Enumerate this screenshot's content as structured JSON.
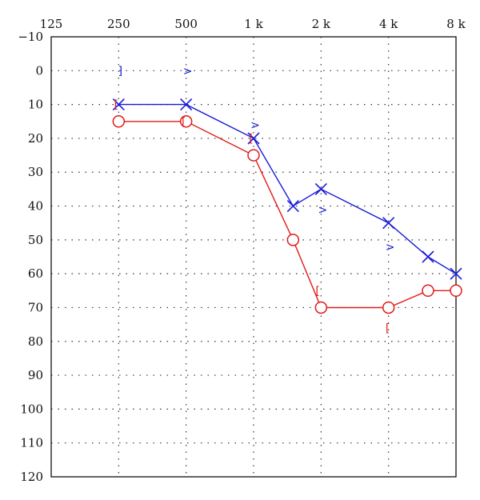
{
  "chart_data": {
    "type": "line",
    "x_scale": "log2",
    "x_ticks": [
      {
        "value": 125,
        "label": "125"
      },
      {
        "value": 250,
        "label": "250"
      },
      {
        "value": 500,
        "label": "500"
      },
      {
        "value": 1000,
        "label": "1 k"
      },
      {
        "value": 2000,
        "label": "2 k"
      },
      {
        "value": 4000,
        "label": "4 k"
      },
      {
        "value": 8000,
        "label": "8 k"
      }
    ],
    "x_range": [
      125,
      8000
    ],
    "ylim": [
      -10,
      120
    ],
    "y_inverted": true,
    "y_ticks": [
      {
        "value": -10,
        "label": "−10"
      },
      {
        "value": 0,
        "label": "0"
      },
      {
        "value": 10,
        "label": "10"
      },
      {
        "value": 20,
        "label": "20"
      },
      {
        "value": 30,
        "label": "30"
      },
      {
        "value": 40,
        "label": "40"
      },
      {
        "value": 50,
        "label": "50"
      },
      {
        "value": 60,
        "label": "60"
      },
      {
        "value": 70,
        "label": "70"
      },
      {
        "value": 80,
        "label": "80"
      },
      {
        "value": 90,
        "label": "90"
      },
      {
        "value": 100,
        "label": "100"
      },
      {
        "value": 110,
        "label": "110"
      },
      {
        "value": 120,
        "label": "120"
      }
    ],
    "grid": true,
    "grid_style": "dotted",
    "series": [
      {
        "color": "#1a1ad8",
        "marker": "x",
        "points": [
          [
            250,
            10
          ],
          [
            500,
            10
          ],
          [
            1000,
            20
          ],
          [
            1500,
            40
          ],
          [
            2000,
            35
          ],
          [
            4000,
            45
          ],
          [
            6000,
            55
          ],
          [
            8000,
            60
          ]
        ]
      },
      {
        "color": "#e01a1a",
        "marker": "o",
        "points": [
          [
            250,
            15
          ],
          [
            500,
            15
          ],
          [
            1000,
            25
          ],
          [
            1500,
            50
          ],
          [
            2000,
            70
          ],
          [
            4000,
            70
          ],
          [
            6000,
            65
          ],
          [
            8000,
            65
          ]
        ]
      }
    ],
    "annotations": [
      {
        "symbol": "]",
        "x": 250,
        "y": 0,
        "color": "#1a1ad8"
      },
      {
        "symbol": ">",
        "x": 500,
        "y": 0,
        "color": "#1a1ad8"
      },
      {
        "symbol": ">",
        "x": 1000,
        "y": 16,
        "color": "#1a1ad8"
      },
      {
        "symbol": ">",
        "x": 2000,
        "y": 41,
        "color": "#1a1ad8"
      },
      {
        "symbol": ">",
        "x": 4000,
        "y": 52,
        "color": "#1a1ad8"
      },
      {
        "symbol": "[",
        "x": 240,
        "y": 10,
        "color": "#e01a1a"
      },
      {
        "symbol": "[",
        "x": 480,
        "y": 15,
        "color": "#e01a1a"
      },
      {
        "symbol": "[",
        "x": 960,
        "y": 20,
        "color": "#e01a1a"
      },
      {
        "symbol": "[",
        "x": 1900,
        "y": 65,
        "color": "#e01a1a"
      },
      {
        "symbol": "[",
        "x": 3900,
        "y": 76,
        "color": "#e01a1a"
      }
    ]
  }
}
